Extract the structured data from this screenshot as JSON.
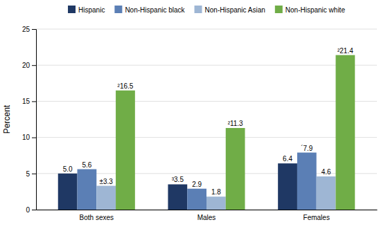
{
  "chart_data": {
    "type": "bar",
    "categories": [
      "Both sexes",
      "Males",
      "Females"
    ],
    "series": [
      {
        "name": "Hispanic",
        "color": "#1F3864",
        "values": [
          5.0,
          3.5,
          6.4
        ],
        "value_labels": [
          "5.0",
          "³3.5",
          "6.4"
        ]
      },
      {
        "name": "Non-Hispanic black",
        "color": "#5B7FB5",
        "values": [
          5.6,
          2.9,
          7.9
        ],
        "value_labels": [
          "5.6",
          "2.9",
          "´7.9"
        ]
      },
      {
        "name": "Non-Hispanic Asian",
        "color": "#9EB6D4",
        "values": [
          3.3,
          1.8,
          4.6
        ],
        "value_labels": [
          "±3.3",
          "1.8",
          "4.6"
        ]
      },
      {
        "name": "Non-Hispanic white",
        "color": "#70AD47",
        "values": [
          16.5,
          11.3,
          21.4
        ],
        "value_labels": [
          "²16.5",
          "²11.3",
          "²21.4"
        ]
      }
    ],
    "ylabel": "Percent",
    "ylim": [
      0,
      25
    ],
    "yticks": [
      0,
      5,
      10,
      15,
      20,
      25
    ],
    "grid": true,
    "data_labels": true,
    "legend": "top"
  }
}
